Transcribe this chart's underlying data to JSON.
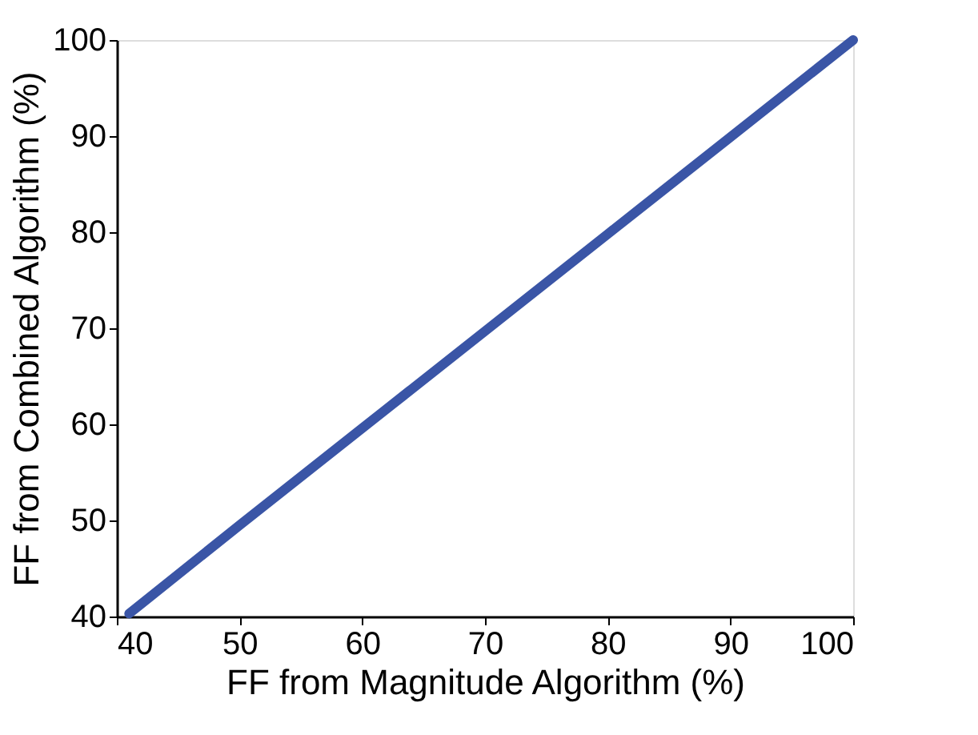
{
  "chart_data": {
    "type": "line",
    "xlabel": "FF from Magnitude Algorithm (%)",
    "ylabel": "FF from Combined Algorithm (%)",
    "x": [
      41,
      50,
      60,
      70,
      80,
      90,
      100
    ],
    "series": [
      {
        "color": "#3a55a6",
        "values": [
          40.3,
          49.5,
          59.6,
          69.7,
          79.8,
          89.9,
          100
        ]
      }
    ],
    "xlim": [
      40,
      100
    ],
    "xticks": [
      40,
      50,
      60,
      70,
      80,
      90,
      100
    ],
    "ylim": [
      40,
      100
    ],
    "yticks": [
      40,
      50,
      60,
      70,
      80,
      90,
      100
    ],
    "grid": false,
    "legend": false,
    "marker": "none",
    "line_style": "solid"
  }
}
